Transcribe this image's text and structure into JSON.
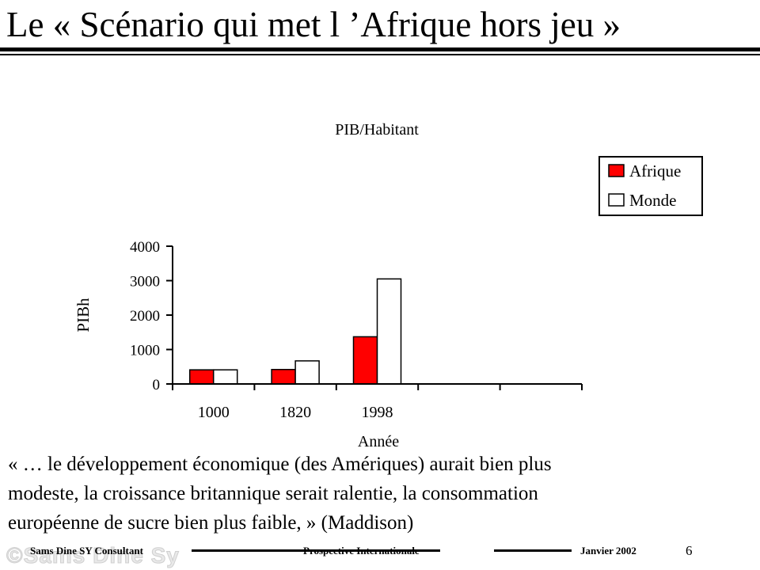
{
  "slide": {
    "title": "Le « Scénario qui met l ’Afrique hors jeu »",
    "quote_lines": [
      "« … le développement économique (des Amériques) aurait bien plus",
      "modeste, la croissance britannique serait ralentie, la consommation",
      "européenne de sucre bien plus faible,  » (Maddison)"
    ]
  },
  "footer": {
    "watermark": "©Sams Dine Sy",
    "author": "Sams Dine SY Consultant",
    "section": "Prospective Internationale",
    "date": "Janvier 2002",
    "page": "6"
  },
  "chart_data": {
    "type": "bar",
    "title": "PIB/Habitant",
    "xlabel": "Année",
    "ylabel": "PIBh",
    "categories": [
      "1000",
      "1820",
      "1998",
      "",
      ""
    ],
    "series": [
      {
        "name": "Afrique",
        "values": [
          410,
          420,
          1370,
          null,
          null
        ],
        "color": "#ff0000"
      },
      {
        "name": "Monde",
        "values": [
          410,
          670,
          3050,
          null,
          null
        ],
        "color": "#ffffff"
      }
    ],
    "ylim": [
      0,
      4000
    ],
    "yticks": [
      0,
      1000,
      2000,
      3000,
      4000
    ],
    "legend": "top-right",
    "grid": false
  }
}
